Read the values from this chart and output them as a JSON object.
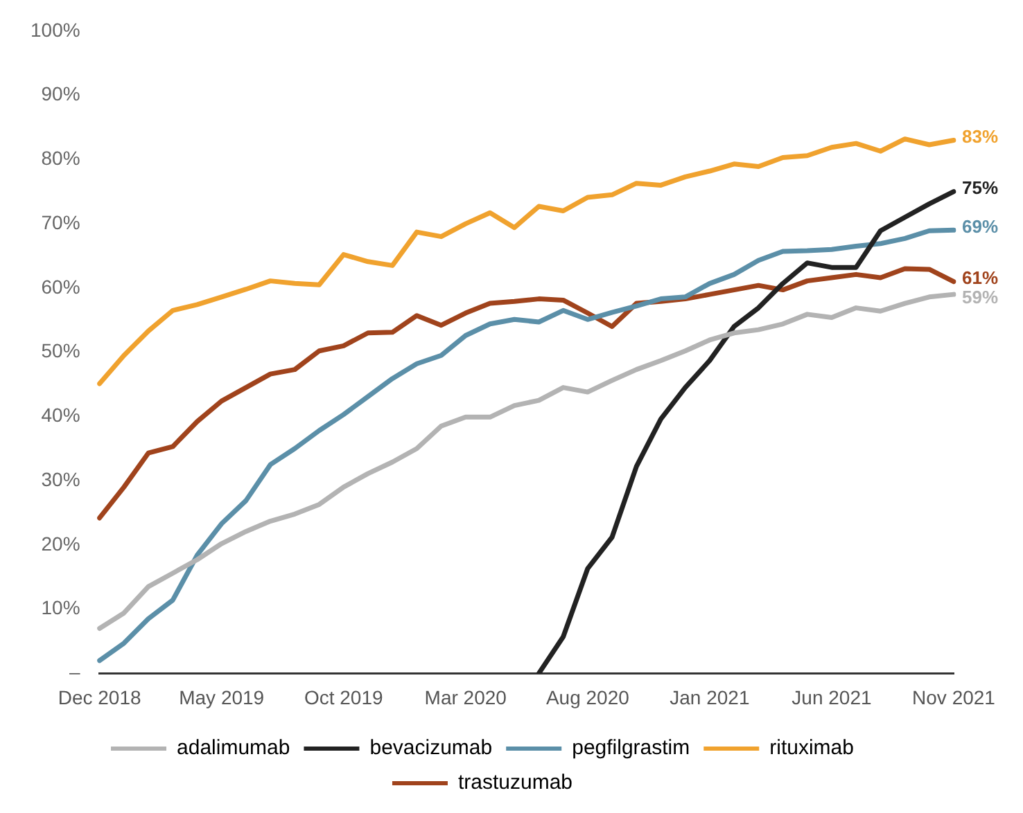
{
  "chart_data": {
    "type": "line",
    "categories": [
      "Dec 2018",
      null,
      null,
      null,
      null,
      "May 2019",
      null,
      null,
      null,
      null,
      "Oct 2019",
      null,
      null,
      null,
      null,
      "Mar 2020",
      null,
      null,
      null,
      null,
      "Aug 2020",
      null,
      null,
      null,
      null,
      "Jan 2021",
      null,
      null,
      null,
      null,
      "Jun 2021",
      null,
      null,
      null,
      null,
      "Nov 2021"
    ],
    "ylim": [
      0,
      100
    ],
    "yticks": [
      {
        "value": 0,
        "label": "–"
      },
      {
        "value": 10,
        "label": "10%"
      },
      {
        "value": 20,
        "label": "20%"
      },
      {
        "value": 30,
        "label": "30%"
      },
      {
        "value": 40,
        "label": "40%"
      },
      {
        "value": 50,
        "label": "50%"
      },
      {
        "value": 60,
        "label": "60%"
      },
      {
        "value": 70,
        "label": "70%"
      },
      {
        "value": 80,
        "label": "80%"
      },
      {
        "value": 90,
        "label": "90%"
      },
      {
        "value": 100,
        "label": "100%"
      }
    ],
    "grid": false,
    "legend": "bottom",
    "marker": "none",
    "line_style": "solid",
    "series": [
      {
        "name": "adalimumab",
        "color": "#b3b3b3",
        "values": [
          7.0,
          9.4,
          13.5,
          15.6,
          17.7,
          20.2,
          22.1,
          23.7,
          24.8,
          26.3,
          29.0,
          31.1,
          32.9,
          35.0,
          38.5,
          39.9,
          39.9,
          41.7,
          42.5,
          44.5,
          43.8,
          45.6,
          47.3,
          48.7,
          50.2,
          51.9,
          53.0,
          53.5,
          54.4,
          55.9,
          55.4,
          56.9,
          56.4,
          57.6,
          58.6,
          59
        ],
        "value_labels": [
          null,
          null,
          null,
          null,
          null,
          null,
          null,
          null,
          null,
          null,
          null,
          null,
          null,
          null,
          null,
          null,
          null,
          null,
          null,
          null,
          null,
          null,
          null,
          null,
          null,
          null,
          null,
          null,
          null,
          null,
          null,
          null,
          null,
          null,
          null,
          "59%"
        ]
      },
      {
        "name": "bevacizumab",
        "color": "#222222",
        "values": [
          null,
          null,
          null,
          null,
          null,
          null,
          null,
          null,
          null,
          null,
          null,
          null,
          null,
          null,
          null,
          null,
          null,
          null,
          0,
          5.7,
          16.3,
          21.2,
          32.2,
          39.6,
          44.5,
          48.7,
          54.0,
          56.9,
          60.7,
          63.9,
          63.2,
          63.2,
          68.9,
          71.0,
          73.1,
          75
        ],
        "value_labels": [
          null,
          null,
          null,
          null,
          null,
          null,
          null,
          null,
          null,
          null,
          null,
          null,
          null,
          null,
          null,
          null,
          null,
          null,
          null,
          null,
          null,
          null,
          null,
          null,
          null,
          null,
          null,
          null,
          null,
          null,
          null,
          null,
          null,
          null,
          null,
          "75%"
        ]
      },
      {
        "name": "pegfilgrastim",
        "color": "#5b8fa8",
        "values": [
          2.0,
          4.7,
          8.5,
          11.4,
          18.4,
          23.3,
          26.9,
          32.5,
          35.0,
          37.8,
          40.3,
          43.1,
          45.9,
          48.2,
          49.5,
          52.6,
          54.4,
          55.1,
          54.7,
          56.5,
          55.1,
          56.2,
          57.2,
          58.3,
          58.6,
          60.7,
          62.1,
          64.3,
          65.7,
          65.8,
          66.0,
          66.5,
          66.9,
          67.7,
          68.9,
          69
        ],
        "value_labels": [
          null,
          null,
          null,
          null,
          null,
          null,
          null,
          null,
          null,
          null,
          null,
          null,
          null,
          null,
          null,
          null,
          null,
          null,
          null,
          null,
          null,
          null,
          null,
          null,
          null,
          null,
          null,
          null,
          null,
          null,
          null,
          null,
          null,
          null,
          null,
          "69%"
        ]
      },
      {
        "name": "rituximab",
        "color": "#f0a22e",
        "values": [
          45.1,
          49.5,
          53.3,
          56.5,
          57.4,
          58.6,
          59.8,
          61.1,
          60.7,
          60.5,
          65.2,
          64.1,
          63.5,
          68.7,
          68.0,
          70.0,
          71.7,
          69.4,
          72.7,
          72.0,
          74.1,
          74.5,
          76.3,
          76.0,
          77.3,
          78.2,
          79.3,
          78.9,
          80.3,
          80.6,
          81.9,
          82.5,
          81.3,
          83.2,
          82.3,
          83
        ],
        "value_labels": [
          null,
          null,
          null,
          null,
          null,
          null,
          null,
          null,
          null,
          null,
          null,
          null,
          null,
          null,
          null,
          null,
          null,
          null,
          null,
          null,
          null,
          null,
          null,
          null,
          null,
          null,
          null,
          null,
          null,
          null,
          null,
          null,
          null,
          null,
          null,
          "83%"
        ]
      },
      {
        "name": "trastuzumab",
        "color": "#a0431c",
        "values": [
          24.2,
          29.0,
          34.3,
          35.3,
          39.2,
          42.4,
          44.5,
          46.6,
          47.3,
          50.2,
          51.0,
          53.0,
          53.1,
          55.7,
          54.2,
          56.1,
          57.6,
          57.9,
          58.3,
          58.1,
          56.1,
          54.0,
          57.6,
          57.9,
          58.3,
          59.0,
          59.7,
          60.4,
          59.7,
          61.1,
          61.6,
          62.1,
          61.6,
          63.0,
          62.9,
          61
        ],
        "value_labels": [
          null,
          null,
          null,
          null,
          null,
          null,
          null,
          null,
          null,
          null,
          null,
          null,
          null,
          null,
          null,
          null,
          null,
          null,
          null,
          null,
          null,
          null,
          null,
          null,
          null,
          null,
          null,
          null,
          null,
          null,
          null,
          null,
          null,
          null,
          null,
          "61%"
        ]
      }
    ]
  }
}
